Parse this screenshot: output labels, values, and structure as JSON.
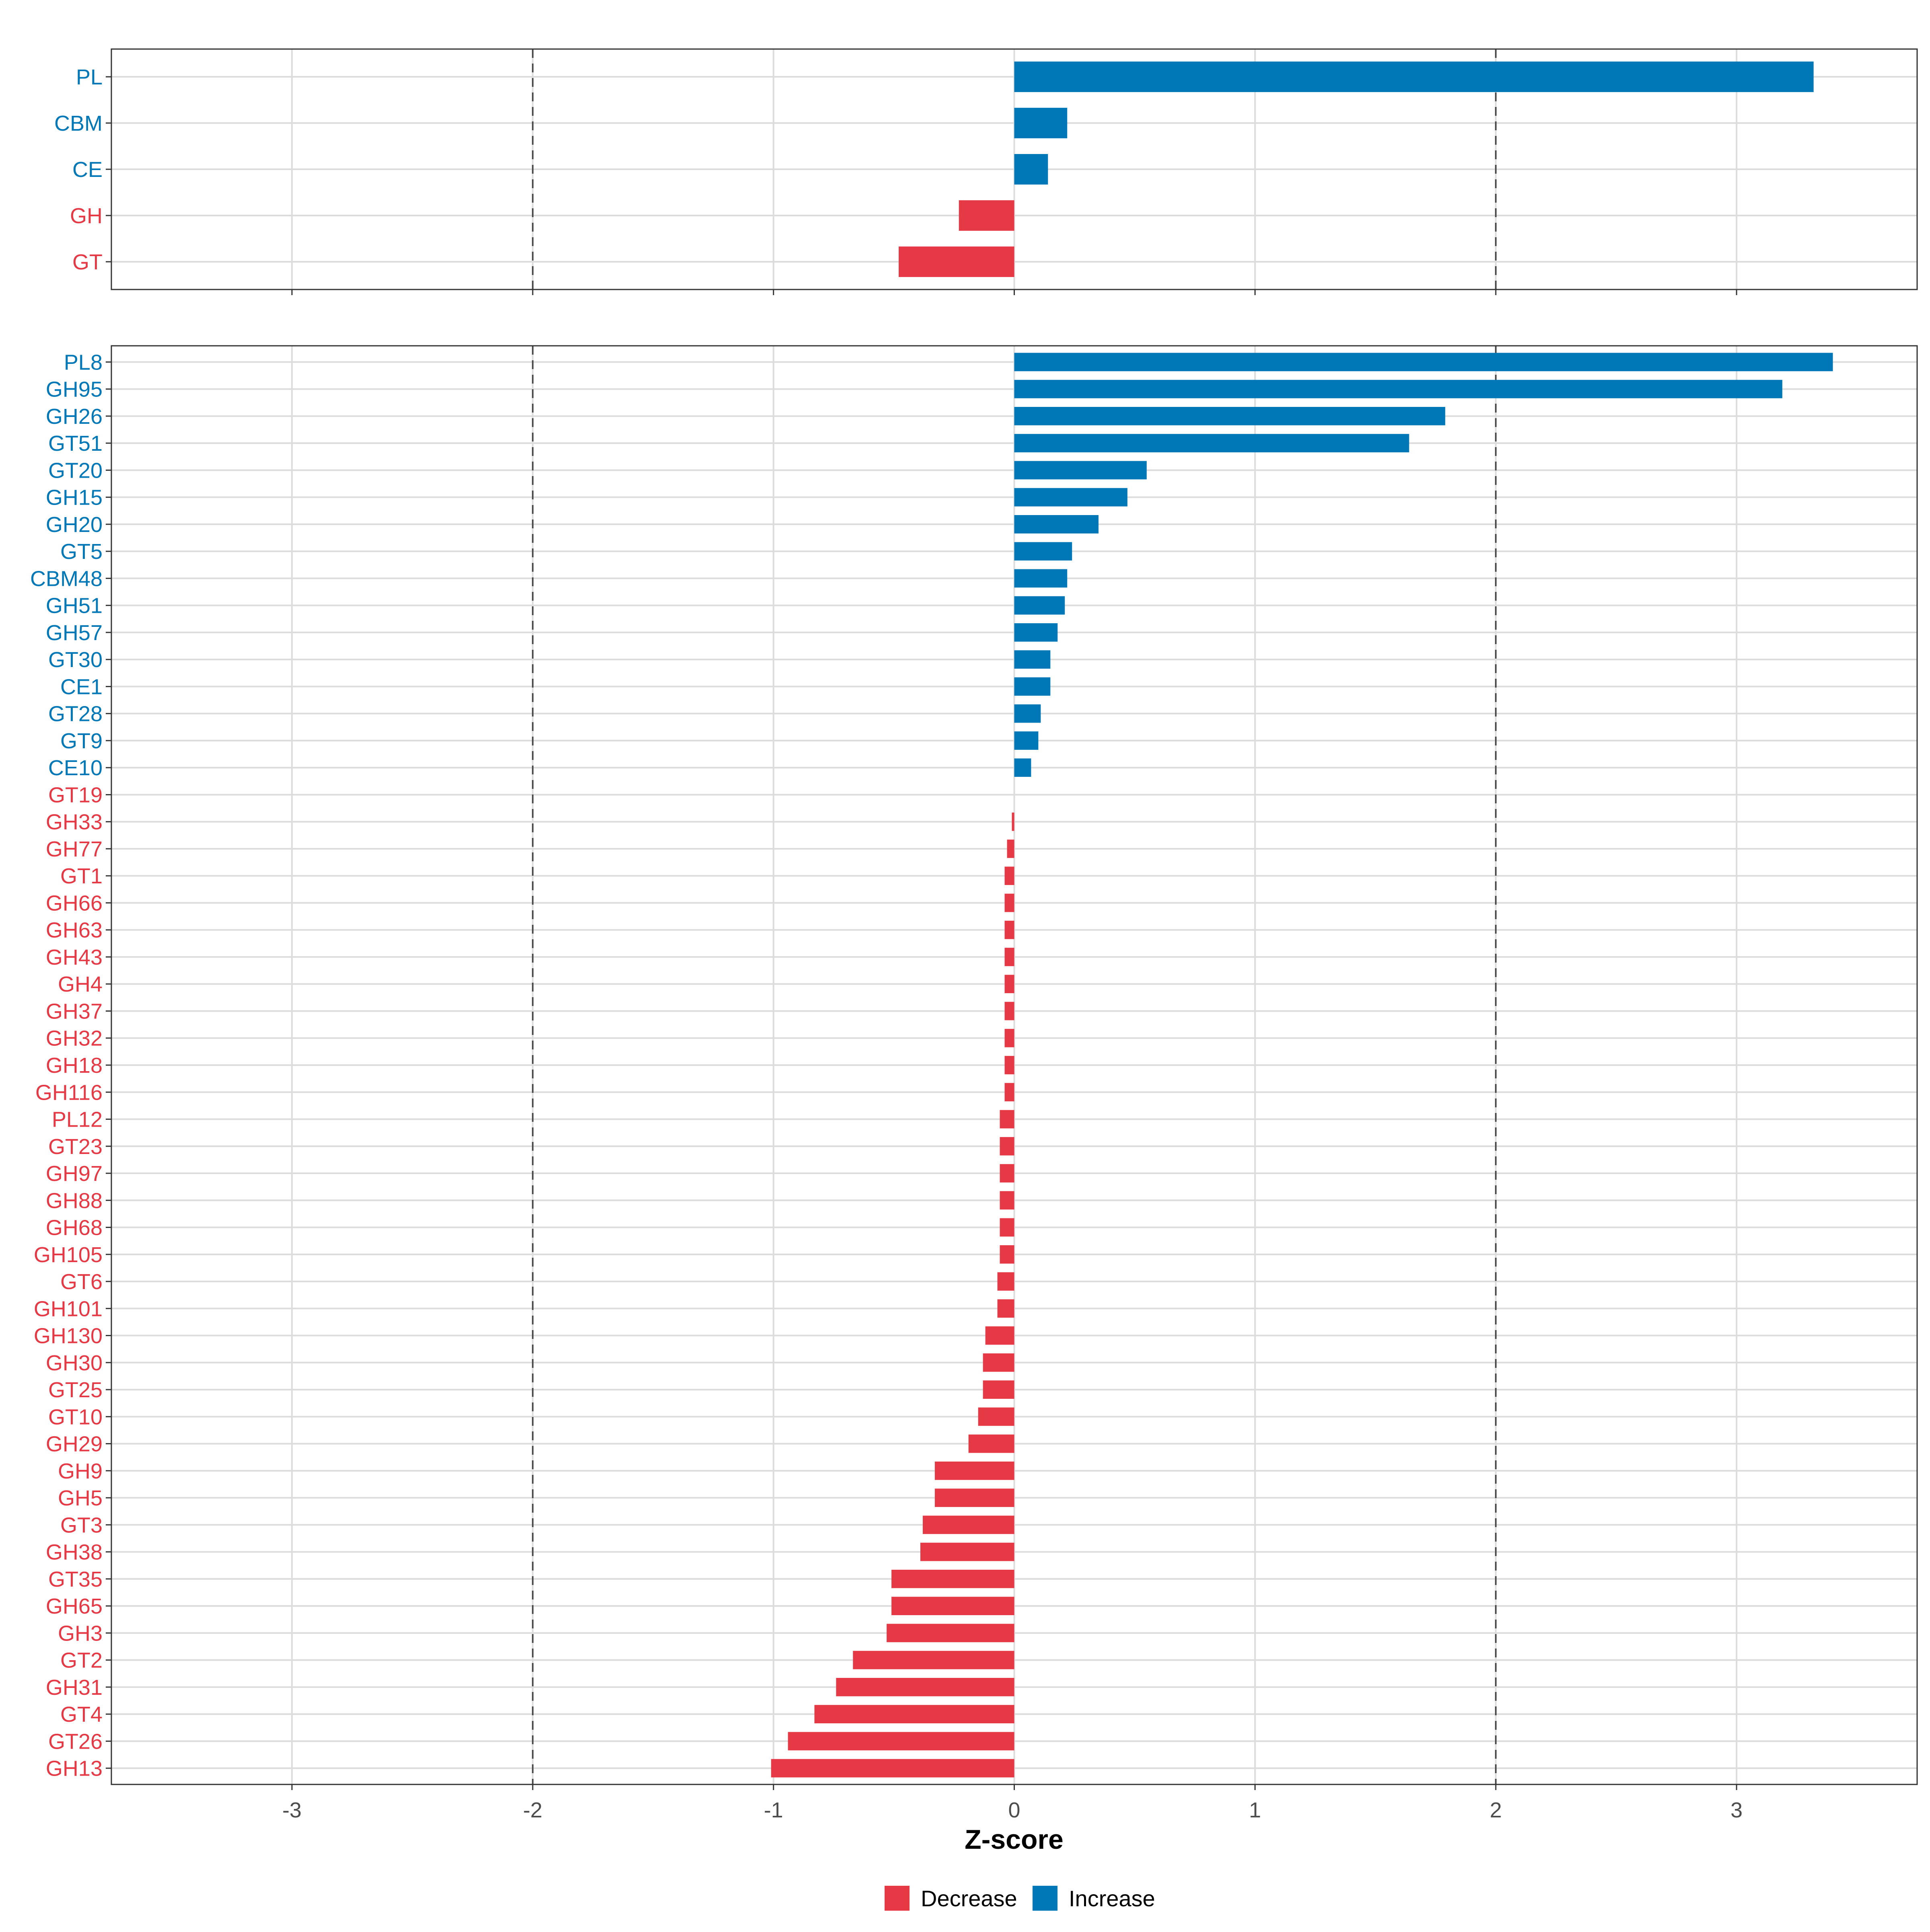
{
  "colors": {
    "decrease": "#e63946",
    "increase": "#0077b6"
  },
  "chart_data": [
    {
      "type": "bar",
      "orientation": "horizontal",
      "panel": "top",
      "xlabel": "Z-score",
      "xlim": [
        -3.75,
        3.75
      ],
      "x_ticks": [
        -3,
        -2,
        -1,
        0,
        1,
        2,
        3
      ],
      "reference_lines": [
        -2,
        2
      ],
      "categories": [
        "PL",
        "CBM",
        "CE",
        "GH",
        "GT"
      ],
      "values": [
        3.32,
        0.22,
        0.14,
        -0.23,
        -0.48
      ]
    },
    {
      "type": "bar",
      "orientation": "horizontal",
      "panel": "bottom",
      "xlabel": "Z-score",
      "xlim": [
        -3.75,
        3.75
      ],
      "x_ticks": [
        -3,
        -2,
        -1,
        0,
        1,
        2,
        3
      ],
      "x_tick_labels": [
        "-3",
        "-2",
        "-1",
        "0",
        "1",
        "2",
        "3"
      ],
      "reference_lines": [
        -2,
        2
      ],
      "categories": [
        "PL8",
        "GH95",
        "GH26",
        "GT51",
        "GT20",
        "GH15",
        "GH20",
        "GT5",
        "CBM48",
        "GH51",
        "GH57",
        "GT30",
        "CE1",
        "GT28",
        "GT9",
        "CE10",
        "GT19",
        "GH33",
        "GH77",
        "GT1",
        "GH66",
        "GH63",
        "GH43",
        "GH4",
        "GH37",
        "GH32",
        "GH18",
        "GH116",
        "PL12",
        "GT23",
        "GH97",
        "GH88",
        "GH68",
        "GH105",
        "GT6",
        "GH101",
        "GH130",
        "GH30",
        "GT25",
        "GT10",
        "GH29",
        "GH9",
        "GH5",
        "GT3",
        "GH38",
        "GT35",
        "GH65",
        "GH3",
        "GT2",
        "GH31",
        "GT4",
        "GT26",
        "GH13"
      ],
      "values": [
        3.4,
        3.19,
        1.79,
        1.64,
        0.55,
        0.47,
        0.35,
        0.24,
        0.22,
        0.21,
        0.18,
        0.15,
        0.15,
        0.11,
        0.1,
        0.07,
        0.0,
        -0.01,
        -0.03,
        -0.04,
        -0.04,
        -0.04,
        -0.04,
        -0.04,
        -0.04,
        -0.04,
        -0.04,
        -0.04,
        -0.06,
        -0.06,
        -0.06,
        -0.06,
        -0.06,
        -0.06,
        -0.07,
        -0.07,
        -0.12,
        -0.13,
        -0.13,
        -0.15,
        -0.19,
        -0.33,
        -0.33,
        -0.38,
        -0.39,
        -0.51,
        -0.51,
        -0.53,
        -0.67,
        -0.74,
        -0.83,
        -0.94,
        -1.01
      ]
    }
  ],
  "legend": {
    "items": [
      {
        "label": "Decrease",
        "color_key": "decrease"
      },
      {
        "label": "Increase",
        "color_key": "increase"
      }
    ]
  }
}
